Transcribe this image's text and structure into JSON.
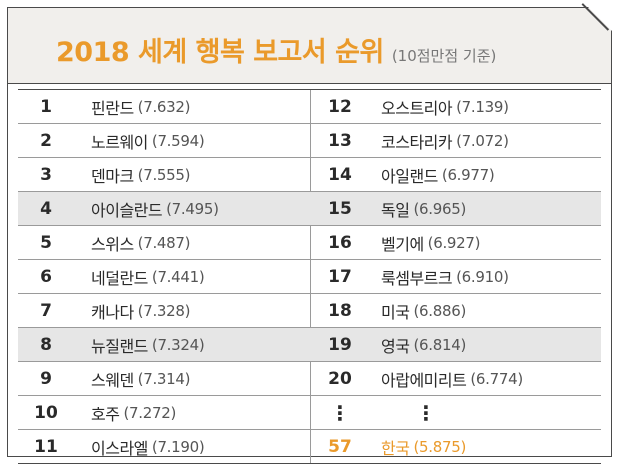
{
  "title": "2018 세계 행복 보고서 순위",
  "subtitle": "(10점만점 기준)",
  "accent_color": "#ea9a2b",
  "left_column": [
    {
      "rank": "1",
      "country": "핀란드",
      "score": "(7.632)"
    },
    {
      "rank": "2",
      "country": "노르웨이",
      "score": "(7.594)"
    },
    {
      "rank": "3",
      "country": "덴마크",
      "score": "(7.555)"
    },
    {
      "rank": "4",
      "country": "아이슬란드",
      "score": "(7.495)"
    },
    {
      "rank": "5",
      "country": "스위스",
      "score": "(7.487)"
    },
    {
      "rank": "6",
      "country": "네덜란드",
      "score": "(7.441)"
    },
    {
      "rank": "7",
      "country": "캐나다",
      "score": "(7.328)"
    },
    {
      "rank": "8",
      "country": "뉴질랜드",
      "score": "(7.324)"
    },
    {
      "rank": "9",
      "country": "스웨덴",
      "score": "(7.314)"
    },
    {
      "rank": "10",
      "country": "호주",
      "score": "(7.272)"
    },
    {
      "rank": "11",
      "country": "이스라엘",
      "score": "(7.190)"
    }
  ],
  "right_column": [
    {
      "rank": "12",
      "country": "오스트리아",
      "score": "(7.139)"
    },
    {
      "rank": "13",
      "country": "코스타리카",
      "score": "(7.072)"
    },
    {
      "rank": "14",
      "country": "아일랜드",
      "score": "(6.977)"
    },
    {
      "rank": "15",
      "country": "독일",
      "score": "(6.965)"
    },
    {
      "rank": "16",
      "country": "벨기에",
      "score": "(6.927)"
    },
    {
      "rank": "17",
      "country": "룩셈부르크",
      "score": "(6.910)"
    },
    {
      "rank": "18",
      "country": "미국",
      "score": "(6.886)"
    },
    {
      "rank": "19",
      "country": "영국",
      "score": "(6.814)"
    },
    {
      "rank": "20",
      "country": "아랍에미리트",
      "score": "(6.774)"
    },
    {
      "rank": "⋮",
      "country": "⋮",
      "score": ""
    },
    {
      "rank": "57",
      "country": "한국",
      "score": "(5.875)"
    }
  ]
}
